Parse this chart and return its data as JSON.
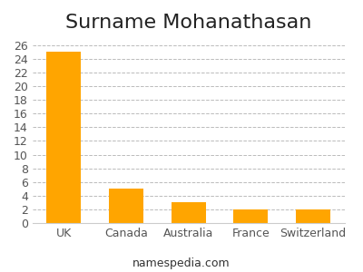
{
  "title": "Surname Mohanathasan",
  "categories": [
    "UK",
    "Canada",
    "Australia",
    "France",
    "Switzerland"
  ],
  "values": [
    25,
    5,
    3,
    2,
    2
  ],
  "bar_color": "#FFA500",
  "background_color": "#ffffff",
  "ylim": [
    0,
    27
  ],
  "yticks": [
    0,
    2,
    4,
    6,
    8,
    10,
    12,
    14,
    16,
    18,
    20,
    22,
    24,
    26
  ],
  "grid_color": "#bbbbbb",
  "title_fontsize": 16,
  "tick_fontsize": 9,
  "footer_text": "namespedia.com",
  "footer_fontsize": 9
}
